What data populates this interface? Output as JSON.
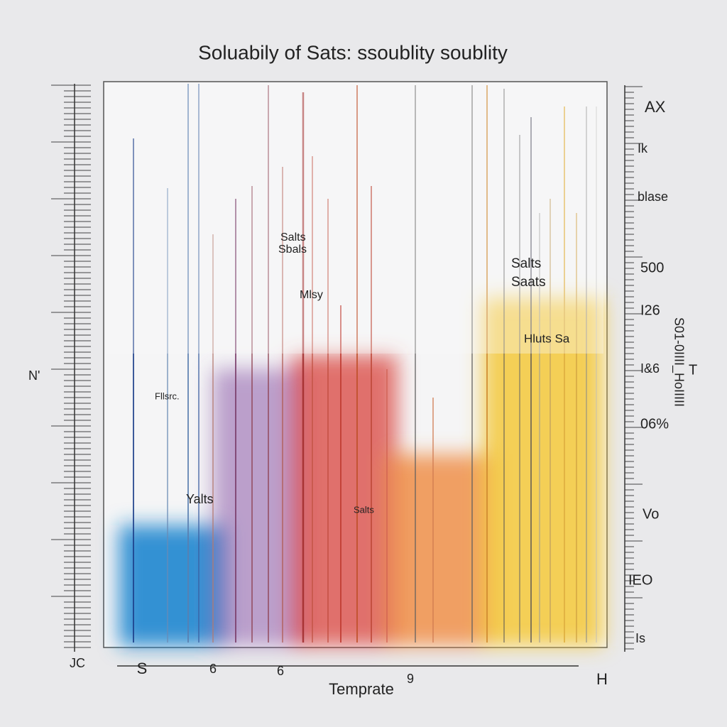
{
  "header": {
    "title": "Soluabily of Sats: ssoublity soublity"
  },
  "x_axis_label": "Temprate",
  "annotations": [
    "Salts",
    "Sbals",
    "Mlsy",
    "Fllsrc.",
    "Yalts",
    "Salts",
    "Salts",
    "Saats",
    "Hluts Sa"
  ],
  "right_axis_labels": [
    "AX",
    "Ik",
    "blase",
    "500",
    "I26",
    "I&6",
    "T",
    "06%",
    "Vo",
    "IEO",
    "Is"
  ],
  "right_axis_title": "S01-0IIII_HoIIIII",
  "left_axis_labels": [
    "N'",
    "JC"
  ],
  "bottom_labels": [
    "S",
    "6",
    "6",
    "9",
    "H"
  ]
}
